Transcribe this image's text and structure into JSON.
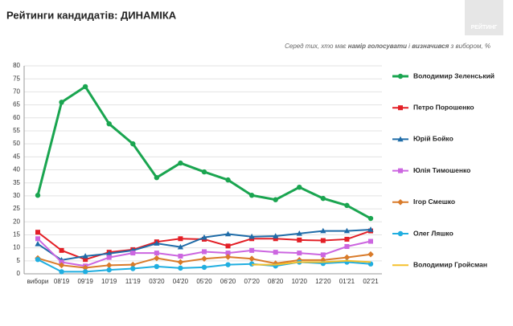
{
  "logo": "РЕЙТИНГ",
  "chart_data": {
    "type": "line",
    "title": "Рейтинги кандидатів: ДИНАМІКА",
    "subtitle": [
      {
        "text": "Серед тих, хто має ",
        "bold": false
      },
      {
        "text": "намір голосувати",
        "bold": true
      },
      {
        "text": " і ",
        "bold": false
      },
      {
        "text": "визначився",
        "bold": true
      },
      {
        "text": " з вибором, %",
        "bold": false
      }
    ],
    "categories": [
      "вибори",
      "08'19",
      "09'19",
      "10'19",
      "11'19",
      "03'20",
      "04'20",
      "05'20",
      "06'20",
      "07'20",
      "08'20",
      "10'20",
      "12'20",
      "01'21",
      "02'21"
    ],
    "ylim": [
      0,
      80
    ],
    "yticks": [
      0,
      5,
      10,
      15,
      20,
      25,
      30,
      35,
      40,
      45,
      50,
      55,
      60,
      65,
      70,
      75,
      80
    ],
    "grid": true,
    "legend": "right",
    "series": [
      {
        "name": "Володимир Зеленський",
        "color": "#1aa550",
        "marker": "circle",
        "width": 3,
        "values": [
          30.2,
          66,
          72,
          57.7,
          50,
          37,
          42.6,
          39.2,
          36.1,
          30.2,
          28.5,
          33.3,
          29,
          26.3,
          21.3
        ]
      },
      {
        "name": "Петро Порошенко",
        "color": "#e31f26",
        "marker": "square",
        "width": 2,
        "values": [
          16,
          9,
          5.5,
          8.3,
          9.3,
          12.3,
          13.5,
          13.3,
          10.7,
          13.5,
          13.5,
          13,
          12.8,
          13.3,
          16.5
        ]
      },
      {
        "name": "Юрій Бойко",
        "color": "#1f6ca8",
        "marker": "triangle",
        "width": 2,
        "values": [
          11.5,
          5.3,
          6.8,
          7.8,
          9,
          11.7,
          10.3,
          14,
          15.3,
          14.3,
          14.5,
          15.5,
          16.5,
          16.5,
          17
        ]
      },
      {
        "name": "Юлія Тимошенко",
        "color": "#cc66e0",
        "marker": "square",
        "width": 2,
        "values": [
          13.5,
          4.5,
          3,
          6.3,
          8,
          8,
          6.8,
          8.5,
          8,
          9,
          8.3,
          8,
          7.3,
          10.5,
          12.5
        ]
      },
      {
        "name": "Ігор Смешко",
        "color": "#d97b2a",
        "marker": "diamond",
        "width": 2,
        "values": [
          6,
          3.3,
          2.3,
          3.3,
          3.5,
          6,
          4.5,
          5.8,
          6.5,
          5.8,
          4,
          5.3,
          5.3,
          6.3,
          7.5
        ]
      },
      {
        "name": "Олег Ляшко",
        "color": "#20aee0",
        "marker": "circle",
        "width": 2,
        "values": [
          5.5,
          0.8,
          0.8,
          1.5,
          2,
          2.8,
          2.2,
          2.5,
          3.5,
          3.8,
          3,
          4.5,
          4,
          4.5,
          3.8
        ]
      },
      {
        "name": "Володимир Гройсман",
        "color": "#f5c02c",
        "marker": "none",
        "width": 2,
        "values": [
          null,
          null,
          null,
          null,
          null,
          null,
          null,
          null,
          null,
          3.5,
          3.5,
          4.5,
          4.5,
          5,
          4.5
        ]
      }
    ]
  }
}
